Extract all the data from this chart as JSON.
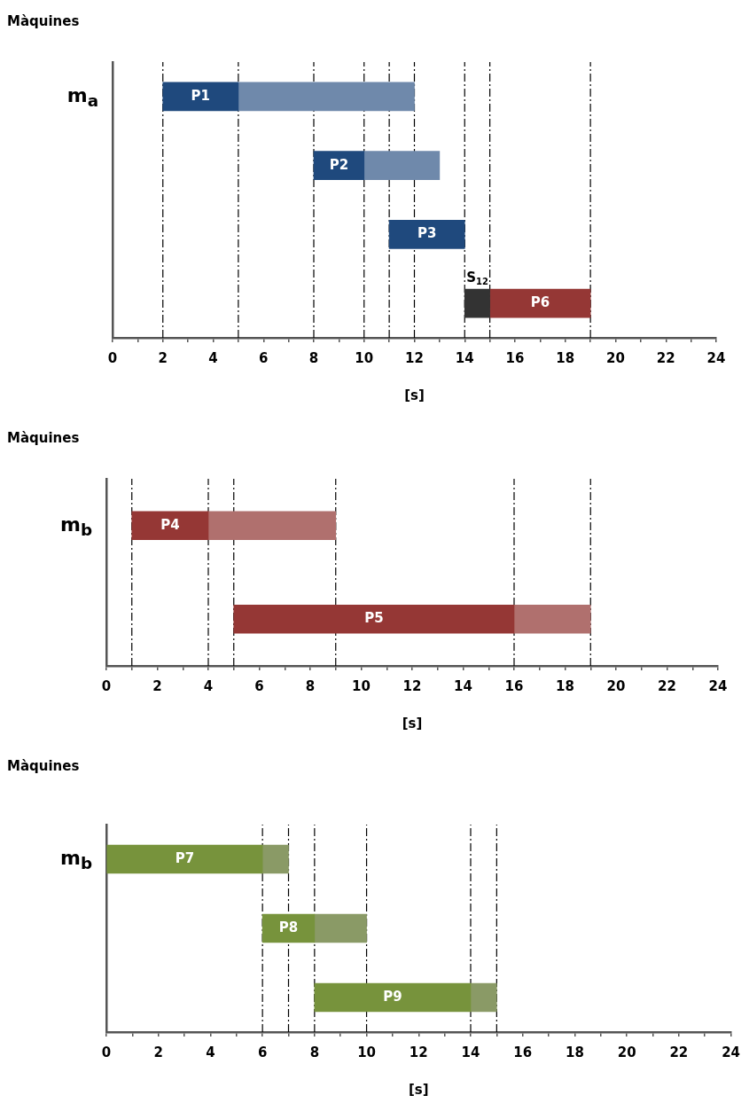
{
  "chart_data": [
    {
      "type": "bar",
      "orientation": "horizontal",
      "ylabel": "Màquines",
      "xlabel": "[s]",
      "categories": [
        "m$_{a}$",
        null,
        null,
        null
      ],
      "series": [
        {
          "color": "#1f497d",
          "base": [
            2,
            8,
            11,
            null
          ],
          "values": [
            3,
            2,
            3,
            null
          ],
          "value_labels": [
            "P1",
            "P2",
            "P3",
            null
          ]
        },
        {
          "color": "#6f89ab",
          "base": [
            5,
            10,
            null,
            null
          ],
          "values": [
            7,
            3,
            null,
            null
          ]
        },
        {
          "color": "#333333",
          "base": [
            null,
            null,
            null,
            14
          ],
          "values": [
            null,
            null,
            null,
            1
          ]
        },
        {
          "color": "#953735",
          "base": [
            null,
            null,
            null,
            15
          ],
          "values": [
            null,
            null,
            null,
            4
          ],
          "value_labels": [
            null,
            null,
            null,
            "P6"
          ]
        }
      ],
      "annotations": [
        {
          "text": "S$_{12}$",
          "x": 14
        }
      ],
      "ref_lines": [
        {
          "axis": "x",
          "value": 2,
          "line_style": "dashed"
        },
        {
          "axis": "x",
          "value": 5,
          "line_style": "dashed"
        },
        {
          "axis": "x",
          "value": 8,
          "line_style": "dashed"
        },
        {
          "axis": "x",
          "value": 10,
          "line_style": "dashed"
        },
        {
          "axis": "x",
          "value": 11,
          "line_style": "dashed"
        },
        {
          "axis": "x",
          "value": 12,
          "line_style": "dashed"
        },
        {
          "axis": "x",
          "value": 14,
          "line_style": "dashed"
        },
        {
          "axis": "x",
          "value": 15,
          "line_style": "dashed"
        },
        {
          "axis": "x",
          "value": 19,
          "line_style": "dashed"
        }
      ],
      "xlim": [
        0,
        24
      ],
      "xticks": [
        0,
        {
          "value": 1,
          "label": null
        },
        2,
        {
          "value": 3,
          "label": null
        },
        4,
        {
          "value": 5,
          "label": null
        },
        6,
        {
          "value": 7,
          "label": null
        },
        8,
        {
          "value": 9,
          "label": null
        },
        10,
        {
          "value": 11,
          "label": null
        },
        12,
        {
          "value": 13,
          "label": null
        },
        14,
        {
          "value": 15,
          "label": null
        },
        16,
        {
          "value": 17,
          "label": null
        },
        18,
        {
          "value": 19,
          "label": null
        },
        20,
        {
          "value": 21,
          "label": null
        },
        22,
        {
          "value": 23,
          "label": null
        },
        24
      ],
      "grid": false,
      "legend": false
    },
    {
      "type": "bar",
      "orientation": "horizontal",
      "ylabel": "Màquines",
      "xlabel": "[s]",
      "categories": [
        "m$_{b}$",
        null
      ],
      "series": [
        {
          "color": "#953735",
          "base": [
            1,
            5
          ],
          "values": [
            3,
            11
          ],
          "value_labels": [
            "P4",
            "P5"
          ]
        },
        {
          "color": "#b0706e",
          "base": [
            4,
            16
          ],
          "values": [
            5,
            3
          ]
        }
      ],
      "ref_lines": [
        {
          "axis": "x",
          "value": 1,
          "line_style": "dashed"
        },
        {
          "axis": "x",
          "value": 4,
          "line_style": "dashed"
        },
        {
          "axis": "x",
          "value": 5,
          "line_style": "dashed"
        },
        {
          "axis": "x",
          "value": 9,
          "line_style": "dashed"
        },
        {
          "axis": "x",
          "value": 16,
          "line_style": "dashed"
        },
        {
          "axis": "x",
          "value": 19,
          "line_style": "dashed"
        }
      ],
      "xlim": [
        0,
        24
      ],
      "xticks": [
        0,
        {
          "value": 1,
          "label": null
        },
        2,
        {
          "value": 3,
          "label": null
        },
        4,
        {
          "value": 5,
          "label": null
        },
        6,
        {
          "value": 7,
          "label": null
        },
        8,
        {
          "value": 9,
          "label": null
        },
        10,
        {
          "value": 11,
          "label": null
        },
        12,
        {
          "value": 13,
          "label": null
        },
        14,
        {
          "value": 15,
          "label": null
        },
        16,
        {
          "value": 17,
          "label": null
        },
        18,
        {
          "value": 19,
          "label": null
        },
        20,
        {
          "value": 21,
          "label": null
        },
        22,
        {
          "value": 23,
          "label": null
        },
        24
      ],
      "grid": false,
      "legend": false
    },
    {
      "type": "bar",
      "orientation": "horizontal",
      "ylabel": "Màquines",
      "xlabel": "[s]",
      "categories": [
        "m$_{b}$",
        null,
        null
      ],
      "series": [
        {
          "color": "#77933c",
          "base": [
            0,
            6,
            8
          ],
          "values": [
            6,
            2,
            6
          ],
          "value_labels": [
            "P7",
            "P8",
            "P9"
          ]
        },
        {
          "color": "#8a9a66",
          "base": [
            6,
            8,
            14
          ],
          "values": [
            1,
            2,
            1
          ]
        }
      ],
      "ref_lines": [
        {
          "axis": "x",
          "value": 6,
          "line_style": "dashed"
        },
        {
          "axis": "x",
          "value": 7,
          "line_style": "dashed"
        },
        {
          "axis": "x",
          "value": 8,
          "line_style": "dashed"
        },
        {
          "axis": "x",
          "value": 10,
          "line_style": "dashed"
        },
        {
          "axis": "x",
          "value": 14,
          "line_style": "dashed"
        },
        {
          "axis": "x",
          "value": 15,
          "line_style": "dashed"
        }
      ],
      "xlim": [
        0,
        24
      ],
      "xticks": [
        0,
        {
          "value": 1,
          "label": null
        },
        2,
        {
          "value": 3,
          "label": null
        },
        4,
        {
          "value": 5,
          "label": null
        },
        6,
        {
          "value": 7,
          "label": null
        },
        8,
        {
          "value": 9,
          "label": null
        },
        10,
        {
          "value": 11,
          "label": null
        },
        12,
        {
          "value": 13,
          "label": null
        },
        14,
        {
          "value": 15,
          "label": null
        },
        16,
        {
          "value": 17,
          "label": null
        },
        18,
        {
          "value": 19,
          "label": null
        },
        20,
        {
          "value": 21,
          "label": null
        },
        22,
        {
          "value": 23,
          "label": null
        },
        24
      ],
      "grid": false,
      "legend": false
    }
  ]
}
